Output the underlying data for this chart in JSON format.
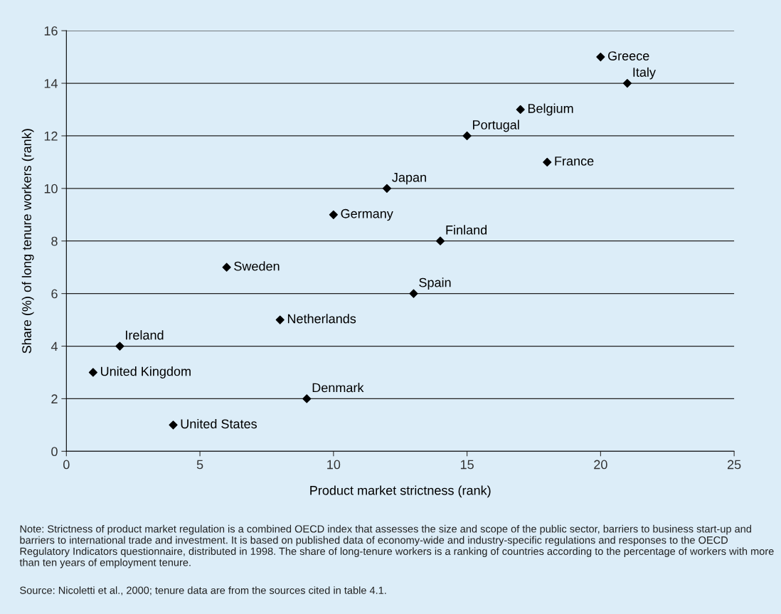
{
  "chart_data": {
    "type": "scatter",
    "xlabel": "Product market strictness (rank)",
    "ylabel": "Share (%) of long tenure workers (rank)",
    "x": [
      1,
      2,
      4,
      6,
      8,
      9,
      10,
      12,
      13,
      14,
      15,
      17,
      18,
      20,
      21
    ],
    "series": [
      {
        "color": "#000000",
        "values": [
          3,
          4,
          1,
          7,
          5,
          2,
          9,
          10,
          6,
          8,
          12,
          13,
          11,
          15,
          14
        ]
      }
    ],
    "marker": "diamond",
    "xlim": [
      0,
      25
    ],
    "xticks": [
      0,
      5,
      10,
      15,
      20,
      25
    ],
    "ylim": [
      0,
      16
    ],
    "yticks": [
      0,
      2,
      4,
      6,
      8,
      10,
      12,
      14,
      16
    ],
    "grid": "y",
    "annotations": [
      {
        "text": "United Kingdom",
        "x": 1,
        "y": 3
      },
      {
        "text": "Ireland",
        "x": 2,
        "y": 4
      },
      {
        "text": "United States",
        "x": 4,
        "y": 1
      },
      {
        "text": "Sweden",
        "x": 6,
        "y": 7
      },
      {
        "text": "Netherlands",
        "x": 8,
        "y": 5
      },
      {
        "text": "Denmark",
        "x": 9,
        "y": 2
      },
      {
        "text": "Germany",
        "x": 10,
        "y": 9
      },
      {
        "text": "Japan",
        "x": 12,
        "y": 10
      },
      {
        "text": "Spain",
        "x": 13,
        "y": 6
      },
      {
        "text": "Finland",
        "x": 14,
        "y": 8
      },
      {
        "text": "Portugal",
        "x": 15,
        "y": 12
      },
      {
        "text": "Belgium",
        "x": 17,
        "y": 13
      },
      {
        "text": "France",
        "x": 18,
        "y": 11
      },
      {
        "text": "Greece",
        "x": 20,
        "y": 15
      },
      {
        "text": "Italy",
        "x": 21,
        "y": 14
      },
      "Note: Strictness of product market regulation is a combined OECD index that assesses the size and scope of the public sector, barriers to business start-up and barriers to international trade and investment. It is based on published data of economy-wide and industry-specific regulations and responses to the OECD Regulatory Indicators questionnaire, distributed in 1998. The share of long-tenure workers is a ranking of countries according to the percentage of workers with more than ten years of employment tenure.",
      "Source: Nicoletti et al., 2000; tenure data are from the sources cited in table 4.1."
    ]
  }
}
